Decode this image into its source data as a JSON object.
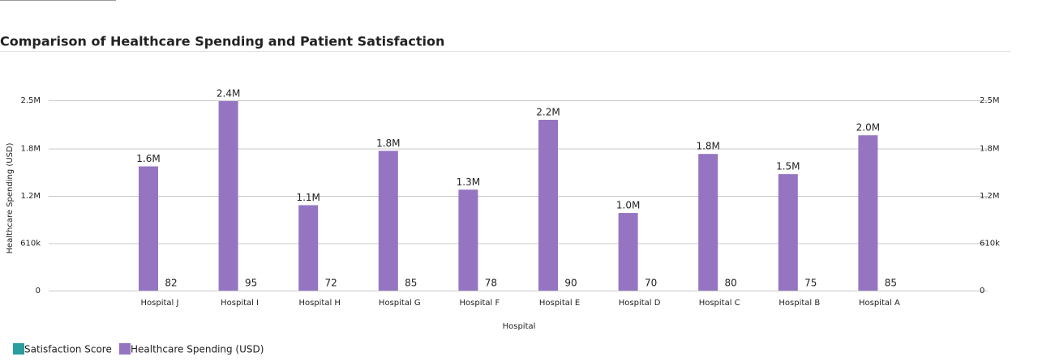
{
  "chart_data": {
    "type": "bar",
    "title": "Comparison of Healthcare Spending and Patient Satisfaction",
    "x_label": "Hospital",
    "y_label": "Healthcare Spending (USD)",
    "categories": [
      "Hospital J",
      "Hospital I",
      "Hospital H",
      "Hospital G",
      "Hospital F",
      "Hospital E",
      "Hospital D",
      "Hospital C",
      "Hospital B",
      "Hospital A"
    ],
    "series": [
      {
        "name": "Healthcare Spending (USD)",
        "color": "#9575c2",
        "values": [
          1600000,
          2440000,
          1100000,
          1800000,
          1300000,
          2200000,
          1000000,
          1760000,
          1500000,
          2000000
        ],
        "value_labels": [
          "1.6M",
          "2.4M",
          "1.1M",
          "1.8M",
          "1.3M",
          "2.2M",
          "1.0M",
          "1.8M",
          "1.5M",
          "2.0M"
        ]
      },
      {
        "name": "Satisfaction Score",
        "color": "#2a9d9f",
        "values": [
          82,
          95,
          72,
          85,
          78,
          90,
          70,
          80,
          75,
          85
        ]
      }
    ],
    "ylim": [
      0,
      2450000
    ],
    "yticks": [
      0,
      {
        "value": 610000,
        "label": "610k"
      },
      {
        "value": 1220000,
        "label": "1.2M"
      },
      {
        "value": 1830000,
        "label": "1.8M"
      },
      {
        "value": 2450000,
        "label": "2.5M"
      }
    ],
    "grid": true
  }
}
